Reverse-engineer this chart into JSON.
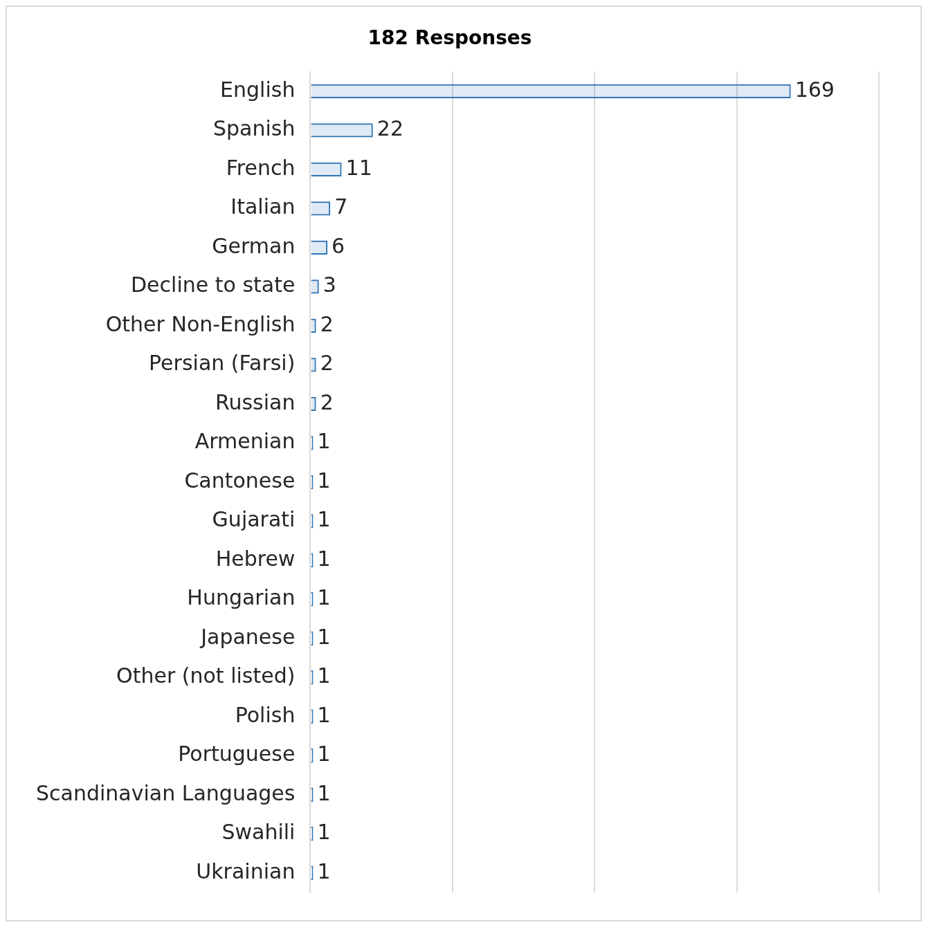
{
  "chart_data": {
    "type": "bar",
    "orientation": "horizontal",
    "title": "182 Responses",
    "categories": [
      "English",
      "Spanish",
      "French",
      "Italian",
      "German",
      "Decline to state",
      "Other Non-English",
      "Persian (Farsi)",
      "Russian",
      "Armenian",
      "Cantonese",
      "Gujarati",
      "Hebrew",
      "Hungarian",
      "Japanese",
      "Other (not listed)",
      "Polish",
      "Portuguese",
      "Scandinavian Languages",
      "Swahili",
      "Ukrainian"
    ],
    "values": [
      169,
      22,
      11,
      7,
      6,
      3,
      2,
      2,
      2,
      1,
      1,
      1,
      1,
      1,
      1,
      1,
      1,
      1,
      1,
      1,
      1
    ],
    "color": "#2e75b6",
    "xlim": [
      0,
      200
    ],
    "xticks": [
      {
        "value": 0,
        "label": null
      },
      {
        "value": 50,
        "label": null
      },
      {
        "value": 100,
        "label": null
      },
      {
        "value": 150,
        "label": null
      },
      {
        "value": 200,
        "label": null
      }
    ],
    "tick_labels": "y",
    "grid": "x",
    "data_labels": true,
    "legend": false
  }
}
